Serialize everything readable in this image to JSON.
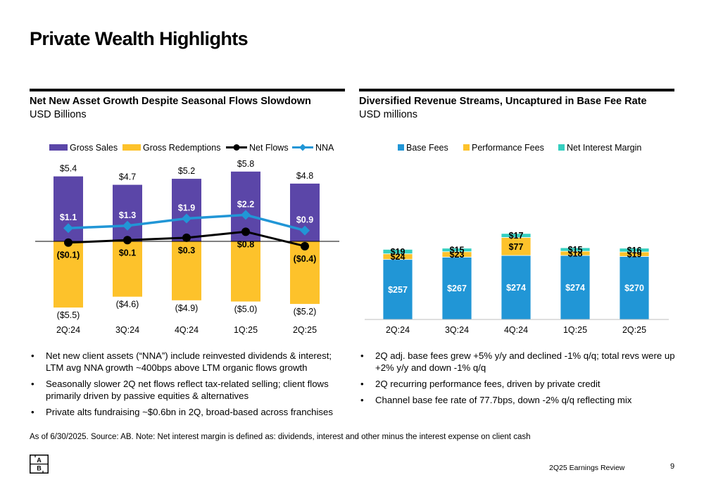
{
  "page": {
    "title": "Private Wealth Highlights",
    "source": "As of 6/30/2025. Source: AB. Note: Net interest margin is defined as: dividends, interest and other minus the interest expense on client cash",
    "footer": "2Q25 Earnings Review",
    "page_number": "9",
    "logo_letters": [
      "A",
      "B"
    ]
  },
  "left_panel": {
    "title": "Net New Asset Growth Despite Seasonal Flows Slowdown",
    "subtitle": "USD Billions",
    "bullets": [
      "Net new client assets (“NNA”) include reinvested dividends & interest; LTM avg NNA growth ~400bps above LTM organic flows growth",
      "Seasonally slower 2Q net flows reflect tax-related selling; client flows primarily driven by passive equities & alternatives",
      "Private alts fundraising ~$0.6bn in 2Q, broad-based across franchises"
    ]
  },
  "right_panel": {
    "title": "Diversified Revenue Streams, Uncaptured in Base Fee Rate",
    "subtitle": "USD millions",
    "bullets": [
      "2Q adj. base fees grew +5% y/y and declined -1% q/q; total revs were up +2% y/y and down -1% q/q",
      "2Q recurring performance fees, driven by private credit",
      "Channel base fee rate of 77.7bps, down -2% q/q reflecting mix"
    ]
  },
  "colors": {
    "gross_sales": "#5b46a8",
    "gross_redemptions": "#fdc22b",
    "net_flows": "#000000",
    "nna": "#2196d6",
    "base_fees": "#2196d6",
    "performance_fees": "#fdc22b",
    "net_interest_margin": "#35cfc0"
  },
  "chart_data": [
    {
      "type": "bar",
      "categories": [
        "2Q:24",
        "3Q:24",
        "4Q:24",
        "1Q:25",
        "2Q:25"
      ],
      "series": [
        {
          "name": "Gross Sales",
          "kind": "bar",
          "values": [
            5.4,
            4.7,
            5.2,
            5.8,
            4.8
          ],
          "labels": [
            "$5.4",
            "$4.7",
            "$5.2",
            "$5.8",
            "$4.8"
          ]
        },
        {
          "name": "Gross Redemptions",
          "kind": "bar",
          "values": [
            -5.5,
            -4.6,
            -4.9,
            -5.0,
            -5.2
          ],
          "labels": [
            "($5.5)",
            "($4.6)",
            "($4.9)",
            "($5.0)",
            "($5.2)"
          ]
        },
        {
          "name": "Net Flows",
          "kind": "line",
          "values": [
            -0.1,
            0.1,
            0.3,
            0.8,
            -0.4
          ],
          "labels": [
            "($0.1)",
            "$0.1",
            "$0.3",
            "$0.8",
            "($0.4)"
          ]
        },
        {
          "name": "NNA",
          "kind": "line",
          "values": [
            1.1,
            1.3,
            1.9,
            2.2,
            0.9
          ],
          "labels": [
            "$1.1",
            "$1.3",
            "$1.9",
            "$2.2",
            "$0.9"
          ]
        }
      ],
      "ylim": [
        -6.3,
        6.5
      ],
      "legend": "top"
    },
    {
      "type": "bar",
      "stacked": true,
      "categories": [
        "2Q:24",
        "3Q:24",
        "4Q:24",
        "1Q:25",
        "2Q:25"
      ],
      "series": [
        {
          "name": "Base Fees",
          "values": [
            257,
            267,
            274,
            274,
            270
          ],
          "labels": [
            "$257",
            "$267",
            "$274",
            "$274",
            "$270"
          ]
        },
        {
          "name": "Performance Fees",
          "values": [
            24,
            23,
            77,
            18,
            19
          ],
          "labels": [
            "$24",
            "$23",
            "$77",
            "$18",
            "$19"
          ]
        },
        {
          "name": "Net Interest Margin",
          "values": [
            19,
            15,
            17,
            15,
            16
          ],
          "labels": [
            "$19",
            "$15",
            "$17",
            "$15",
            "$16"
          ]
        }
      ],
      "ylim": [
        0,
        385
      ],
      "legend": "top"
    }
  ]
}
